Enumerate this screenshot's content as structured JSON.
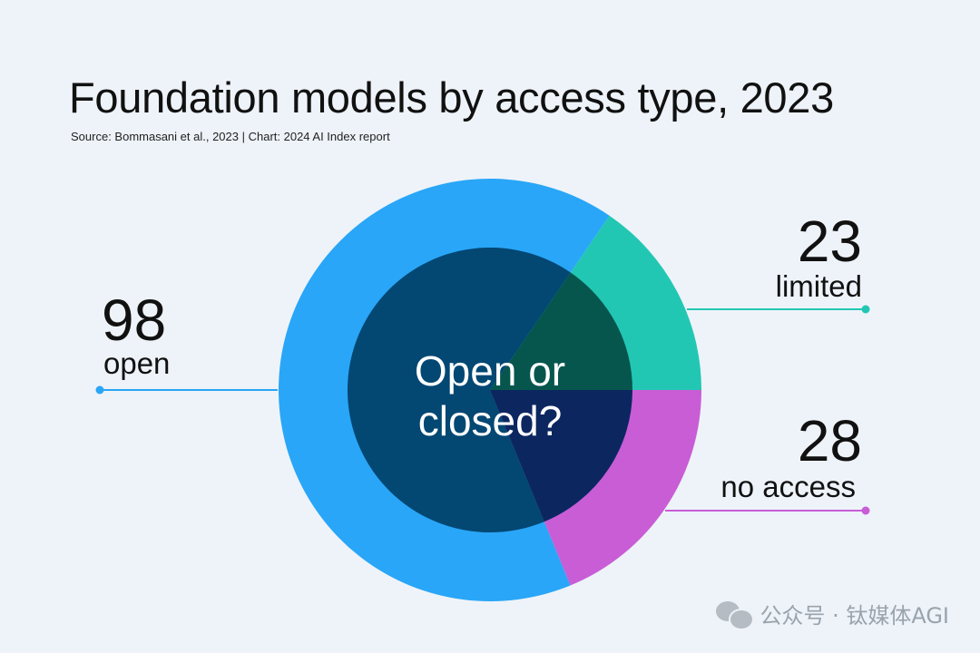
{
  "chart_data": {
    "type": "pie",
    "title": "Foundation models by access type, 2023",
    "subtitle": "Source: Bommasani et al., 2023 | Chart: 2024 AI Index report",
    "center_text": [
      "Open or",
      "closed?"
    ],
    "slices": [
      {
        "label": "open",
        "value": 98,
        "outer_color": "#29a6f7",
        "inner_color": "#034773",
        "leader_color": "#29a6f7"
      },
      {
        "label": "limited",
        "value": 23,
        "outer_color": "#22c7b3",
        "inner_color": "#06564e",
        "leader_color": "#22c7b3"
      },
      {
        "label": "no access",
        "value": 28,
        "outer_color": "#c85dd6",
        "inner_color": "#0c2660",
        "leader_color": "#c85dd6"
      }
    ]
  },
  "watermark": {
    "text": "公众号 · 钛媒体AGI",
    "icon": "wechat-icon"
  }
}
